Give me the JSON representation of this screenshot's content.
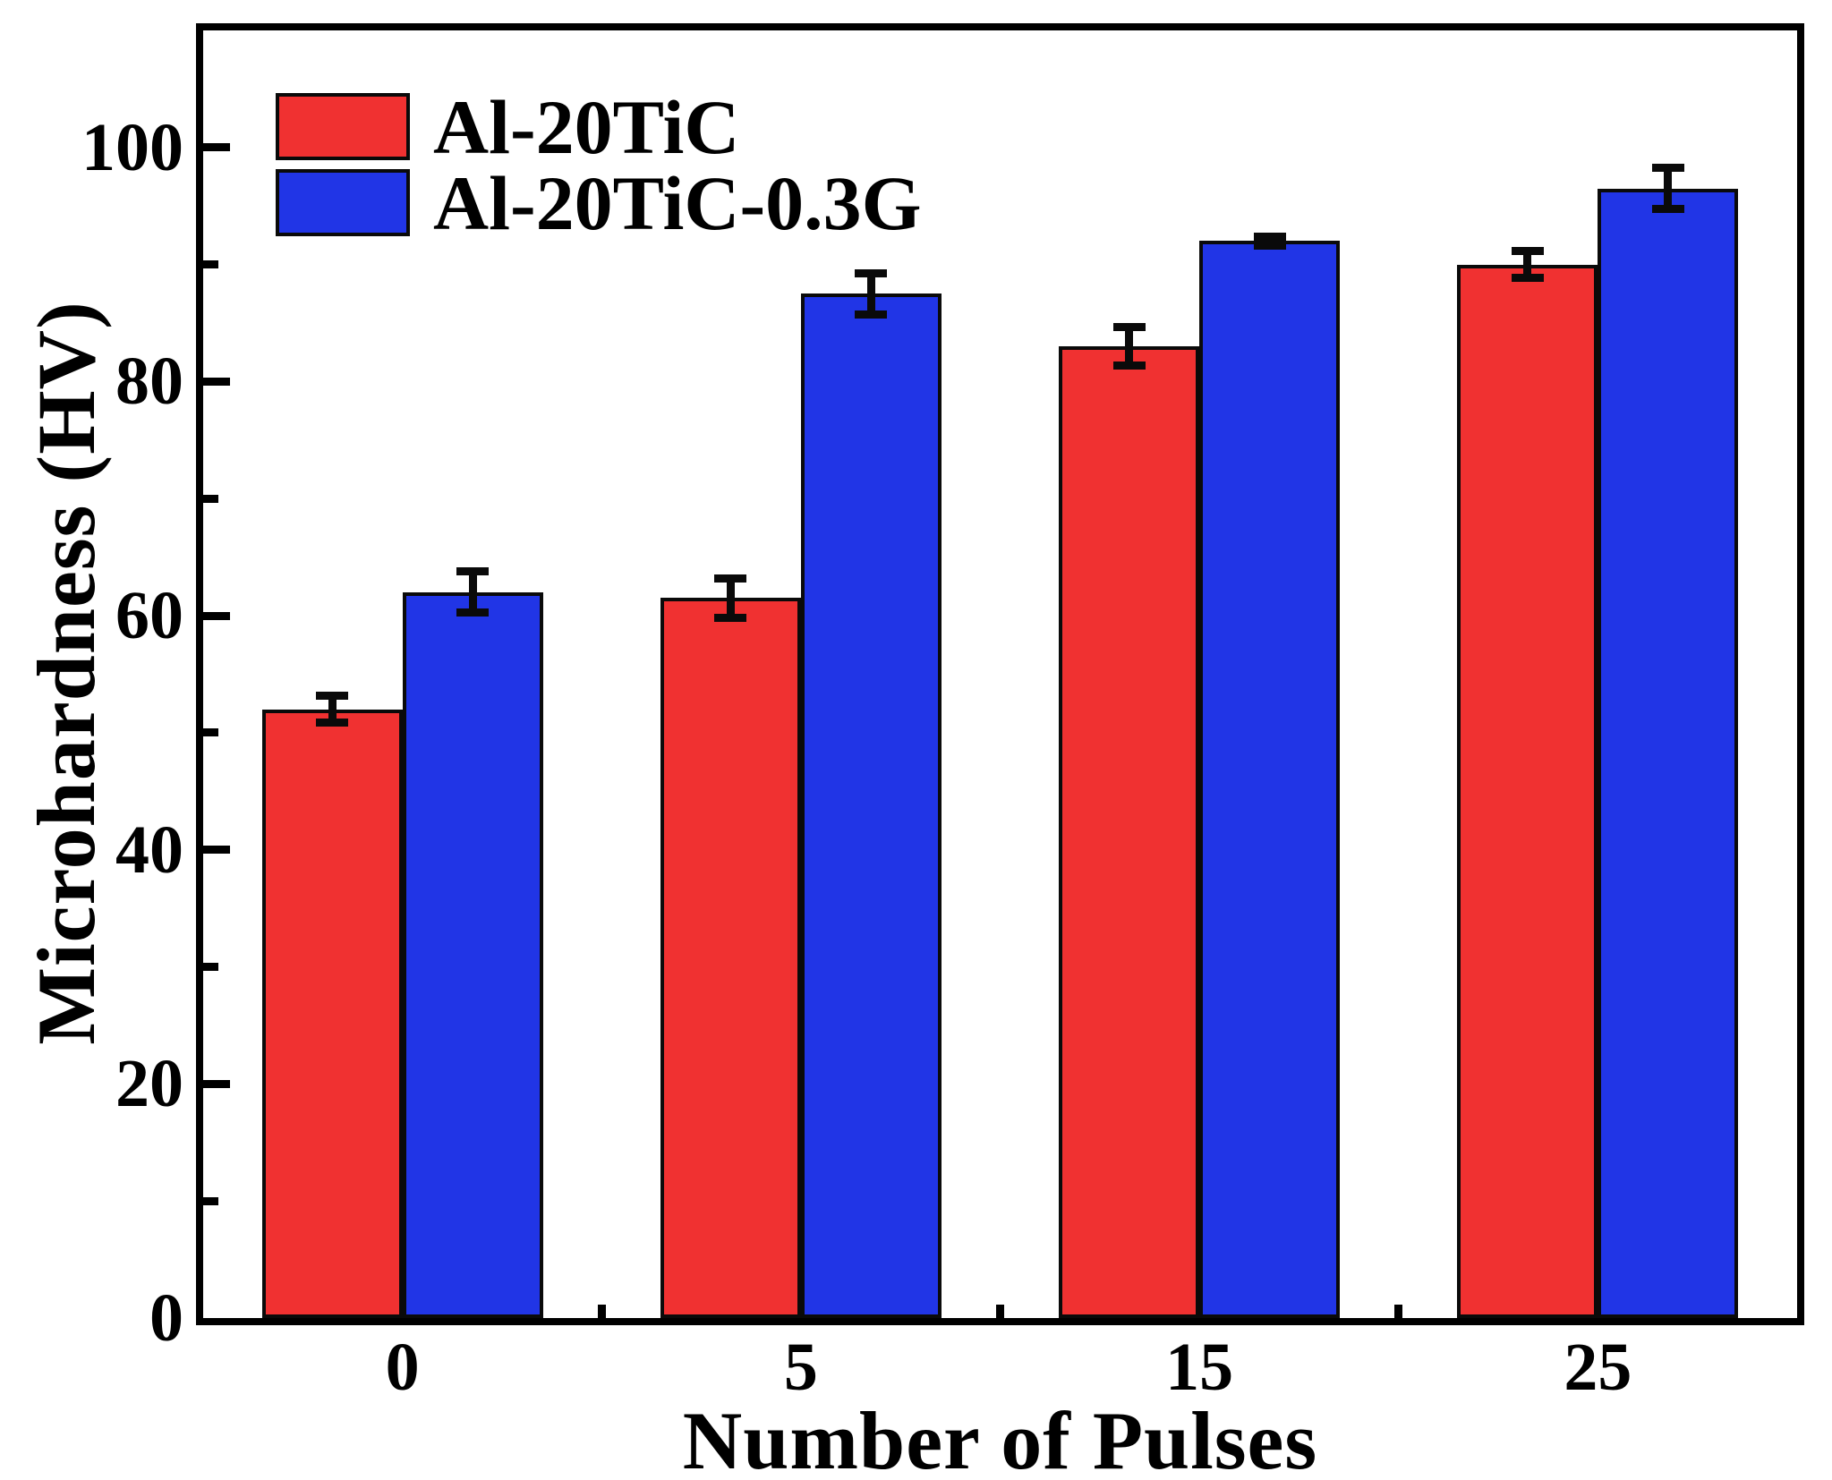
{
  "chart_data": {
    "type": "bar",
    "title": "",
    "categories": [
      "0",
      "5",
      "15",
      "25"
    ],
    "series": [
      {
        "name": "Al-20TiC",
        "color": "#f03131",
        "values": [
          52,
          61.5,
          83,
          90
        ],
        "errors": [
          1.5,
          2.0,
          2.0,
          1.5
        ]
      },
      {
        "name": "Al-20TiC-0.3G",
        "color": "#2135e6",
        "values": [
          62,
          87.5,
          92,
          96.5
        ],
        "errors": [
          2.1,
          2.1,
          0.7,
          2.1
        ]
      }
    ],
    "xlabel": "Number of Pulses",
    "ylabel": "Microhardness (HV)",
    "ylim": [
      0,
      110
    ],
    "yticks": [
      0,
      20,
      40,
      60,
      80,
      100
    ],
    "yminor_ticks": [
      10,
      30,
      50,
      70,
      90
    ],
    "xminor_tick_positions": "between-categories",
    "legend_position": "top-left",
    "grid": false,
    "error_bars": true,
    "colors": {
      "bar_edge": "#0a0a0a",
      "axis": "#000000",
      "text": "#000000",
      "background": "#ffffff"
    }
  }
}
